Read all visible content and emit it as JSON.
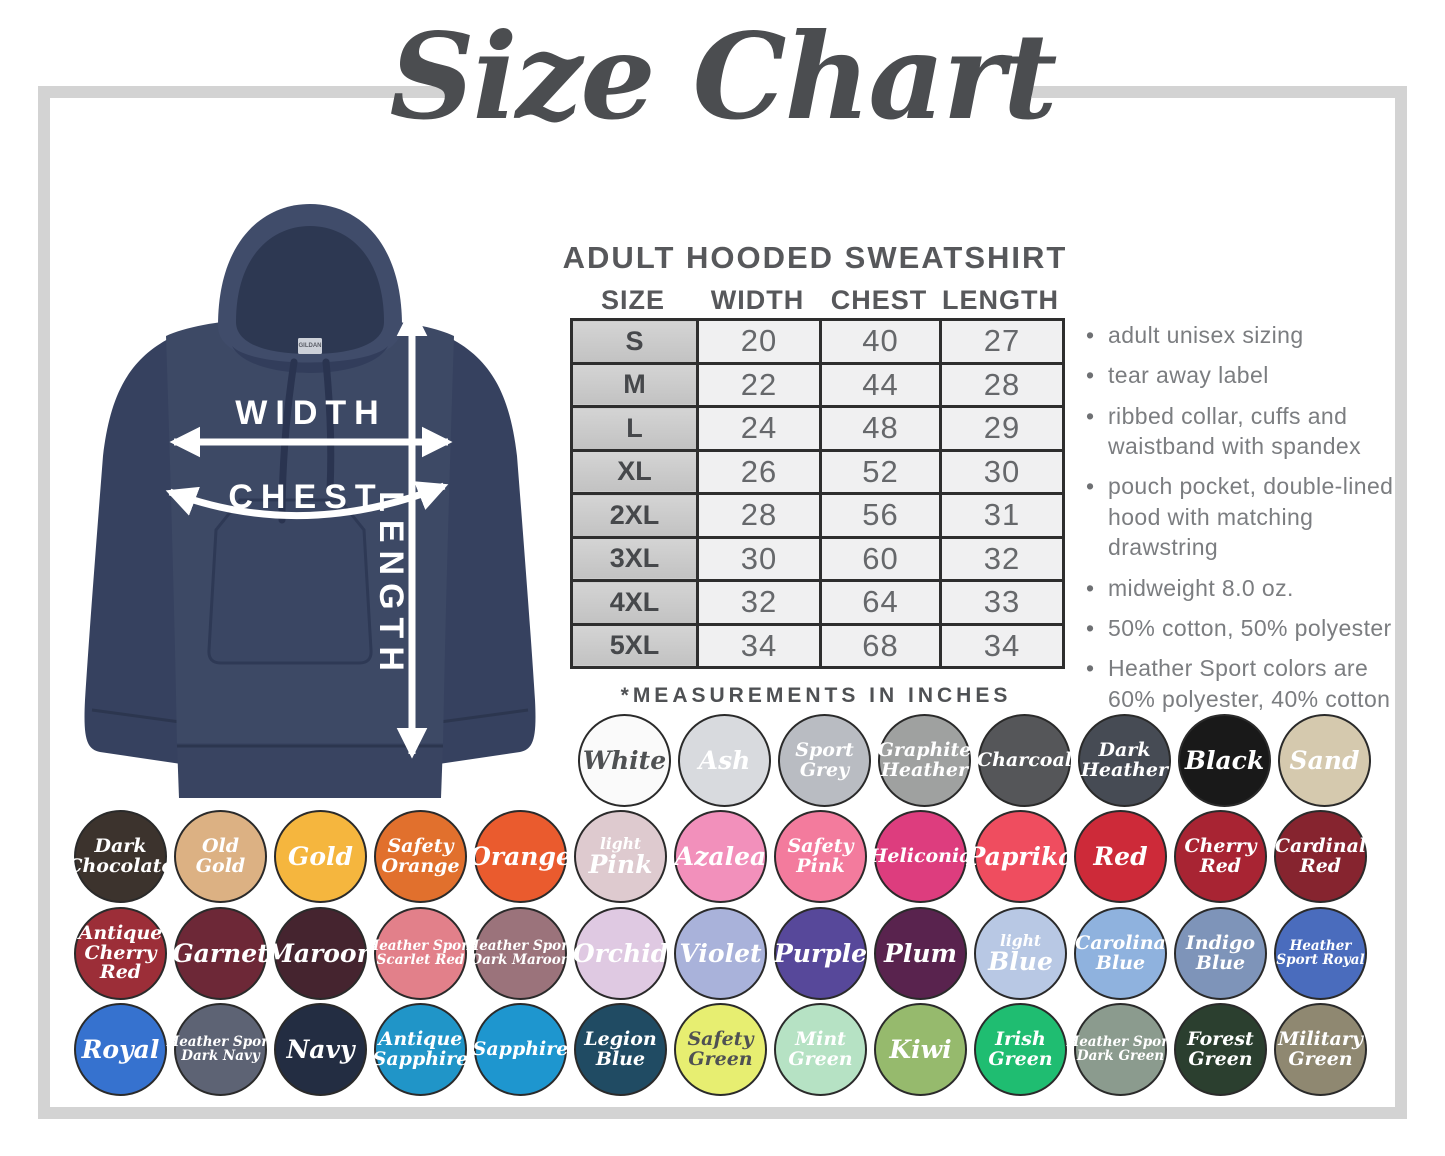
{
  "title": "Size Chart",
  "hoodie": {
    "brand_label": "GILDAN",
    "labels": {
      "width": "WIDTH",
      "chest": "CHEST",
      "length": "LENGTH"
    },
    "color": "#3d4965"
  },
  "size_table": {
    "heading": "ADULT HOODED SWEATSHIRT",
    "columns": [
      "SIZE",
      "WIDTH",
      "CHEST",
      "LENGTH"
    ],
    "rows": [
      [
        "S",
        "20",
        "40",
        "27"
      ],
      [
        "M",
        "22",
        "44",
        "28"
      ],
      [
        "L",
        "24",
        "48",
        "29"
      ],
      [
        "XL",
        "26",
        "52",
        "30"
      ],
      [
        "2XL",
        "28",
        "56",
        "31"
      ],
      [
        "3XL",
        "30",
        "60",
        "32"
      ],
      [
        "4XL",
        "32",
        "64",
        "33"
      ],
      [
        "5XL",
        "34",
        "68",
        "34"
      ]
    ],
    "footnote": "*MEASUREMENTS IN INCHES"
  },
  "features": [
    "adult unisex sizing",
    "tear away label",
    "ribbed collar, cuffs and waistband with spandex",
    "pouch pocket, double-lined hood with matching drawstring",
    "midweight 8.0 oz.",
    "50% cotton, 50% polyester",
    "Heather Sport colors are 60% polyester, 40% cotton"
  ],
  "swatch_rows": [
    {
      "swatches": [
        {
          "name": "White",
          "lines": [
            "White"
          ],
          "color": "#fafafa",
          "size": "lg",
          "text": "dark"
        },
        {
          "name": "Ash",
          "lines": [
            "Ash"
          ],
          "color": "#d8dade",
          "size": "lg"
        },
        {
          "name": "Sport Grey",
          "lines": [
            "Sport",
            "Grey"
          ],
          "color": "#b9bcc2",
          "size": "md"
        },
        {
          "name": "Graphite Heather",
          "lines": [
            "Graphite",
            "Heather"
          ],
          "color": "#9fa1a0",
          "size": "md"
        },
        {
          "name": "Charcoal",
          "lines": [
            "Charcoal"
          ],
          "color": "#555659",
          "size": "md"
        },
        {
          "name": "Dark Heather",
          "lines": [
            "Dark",
            "Heather"
          ],
          "color": "#464b54",
          "size": "md"
        },
        {
          "name": "Black",
          "lines": [
            "Black"
          ],
          "color": "#191919",
          "size": "lg"
        },
        {
          "name": "Sand",
          "lines": [
            "Sand"
          ],
          "color": "#d5c9ae",
          "size": "lg"
        }
      ]
    },
    {
      "swatches": [
        {
          "name": "Dark Chocolate",
          "lines": [
            "Dark",
            "Chocolate"
          ],
          "color": "#3c332d",
          "size": "md"
        },
        {
          "name": "Old Gold",
          "lines": [
            "Old",
            "Gold"
          ],
          "color": "#dcb183",
          "size": "md"
        },
        {
          "name": "Gold",
          "lines": [
            "Gold"
          ],
          "color": "#f5b63e",
          "size": "lg"
        },
        {
          "name": "Safety Orange",
          "lines": [
            "Safety",
            "Orange"
          ],
          "color": "#e1702d",
          "size": "md"
        },
        {
          "name": "Orange",
          "lines": [
            "Orange"
          ],
          "color": "#ea5b2e",
          "size": "lg"
        },
        {
          "name": "Light Pink",
          "lines": [
            "light",
            "Pink"
          ],
          "color": "#decacf",
          "size": "lg",
          "small_first": true
        },
        {
          "name": "Azalea",
          "lines": [
            "Azalea"
          ],
          "color": "#f290bb",
          "size": "lg"
        },
        {
          "name": "Safety Pink",
          "lines": [
            "Safety",
            "Pink"
          ],
          "color": "#f37b9d",
          "size": "md"
        },
        {
          "name": "Heliconia",
          "lines": [
            "Heliconia"
          ],
          "color": "#dd3d7e",
          "size": "md"
        },
        {
          "name": "Paprika",
          "lines": [
            "Paprika"
          ],
          "color": "#ef4d5f",
          "size": "lg"
        },
        {
          "name": "Red",
          "lines": [
            "Red"
          ],
          "color": "#cd2a39",
          "size": "lg"
        },
        {
          "name": "Cherry Red",
          "lines": [
            "Cherry",
            "Red"
          ],
          "color": "#a82433",
          "size": "md"
        },
        {
          "name": "Cardinal Red",
          "lines": [
            "Cardinal",
            "Red"
          ],
          "color": "#86242f",
          "size": "md"
        }
      ]
    },
    {
      "swatches": [
        {
          "name": "Antique Cherry Red",
          "lines": [
            "Antique",
            "Cherry",
            "Red"
          ],
          "color": "#9c2e38",
          "size": "md"
        },
        {
          "name": "Garnet",
          "lines": [
            "Garnet"
          ],
          "color": "#6d2837",
          "size": "lg"
        },
        {
          "name": "Maroon",
          "lines": [
            "Maroon"
          ],
          "color": "#45242f",
          "size": "lg"
        },
        {
          "name": "Heather Sport Scarlet Red",
          "lines": [
            "Heather Sport",
            "Scarlet Red"
          ],
          "color": "#e2808a",
          "size": "sm"
        },
        {
          "name": "Heather Sport Dark Maroon",
          "lines": [
            "Heather Sport",
            "Dark Maroon"
          ],
          "color": "#9b737b",
          "size": "sm"
        },
        {
          "name": "Orchid",
          "lines": [
            "Orchid"
          ],
          "color": "#dfc9e2",
          "size": "lg"
        },
        {
          "name": "Violet",
          "lines": [
            "Violet"
          ],
          "color": "#a9b2da",
          "size": "lg"
        },
        {
          "name": "Purple",
          "lines": [
            "Purple"
          ],
          "color": "#57489a",
          "size": "lg"
        },
        {
          "name": "Plum",
          "lines": [
            "Plum"
          ],
          "color": "#59234e",
          "size": "lg"
        },
        {
          "name": "Light Blue",
          "lines": [
            "light",
            "Blue"
          ],
          "color": "#b8c8e4",
          "size": "lg",
          "small_first": true
        },
        {
          "name": "Carolina Blue",
          "lines": [
            "Carolina",
            "Blue"
          ],
          "color": "#8fb2de",
          "size": "md"
        },
        {
          "name": "Indigo Blue",
          "lines": [
            "Indigo",
            "Blue"
          ],
          "color": "#7e94b9",
          "size": "md"
        },
        {
          "name": "Heather Sport Royal",
          "lines": [
            "Heather",
            "Sport Royal"
          ],
          "color": "#4a6cbd",
          "size": "sm"
        }
      ]
    },
    {
      "swatches": [
        {
          "name": "Royal",
          "lines": [
            "Royal"
          ],
          "color": "#3672cf",
          "size": "lg"
        },
        {
          "name": "Heather Sport Dark Navy",
          "lines": [
            "Heather Sport",
            "Dark Navy"
          ],
          "color": "#5d6374",
          "size": "sm"
        },
        {
          "name": "Navy",
          "lines": [
            "Navy"
          ],
          "color": "#232d42",
          "size": "lg"
        },
        {
          "name": "Antique Sapphire",
          "lines": [
            "Antique",
            "Sapphire"
          ],
          "color": "#2095c8",
          "size": "md"
        },
        {
          "name": "Sapphire",
          "lines": [
            "Sapphire"
          ],
          "color": "#1e96cf",
          "size": "md"
        },
        {
          "name": "Legion Blue",
          "lines": [
            "Legion",
            "Blue"
          ],
          "color": "#204b63",
          "size": "md"
        },
        {
          "name": "Safety Green",
          "lines": [
            "Safety",
            "Green"
          ],
          "color": "#e7ee71",
          "size": "md",
          "text": "dark"
        },
        {
          "name": "Mint Green",
          "lines": [
            "Mint",
            "Green"
          ],
          "color": "#b6e2c4",
          "size": "md"
        },
        {
          "name": "Kiwi",
          "lines": [
            "Kiwi"
          ],
          "color": "#96ba6d",
          "size": "lg"
        },
        {
          "name": "Irish Green",
          "lines": [
            "Irish",
            "Green"
          ],
          "color": "#1fbd71",
          "size": "md"
        },
        {
          "name": "Heather Sport Dark Green",
          "lines": [
            "Heather Sport",
            "Dark Green"
          ],
          "color": "#8b9b8e",
          "size": "sm"
        },
        {
          "name": "Forest Green",
          "lines": [
            "Forest",
            "Green"
          ],
          "color": "#2b3f2f",
          "size": "md"
        },
        {
          "name": "Military Green",
          "lines": [
            "Military",
            "Green"
          ],
          "color": "#8f8871",
          "size": "md"
        }
      ]
    }
  ],
  "colors": {
    "frame": "#d3d3d3",
    "heading": "#57585b",
    "hoodie_navy": "#3d4965"
  }
}
